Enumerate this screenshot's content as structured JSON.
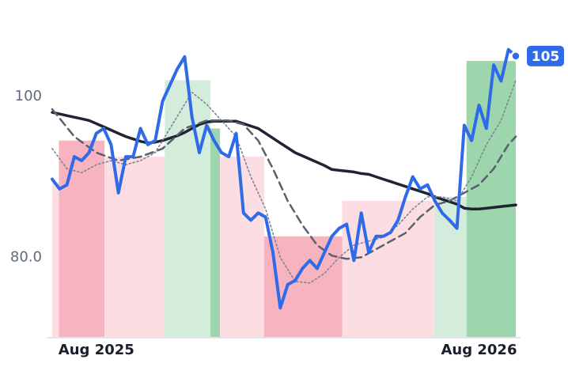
{
  "chart_data": {
    "type": "line",
    "x": [
      0,
      1,
      2,
      3,
      4,
      5,
      6,
      7,
      8,
      9,
      10,
      11,
      12,
      13,
      14,
      15,
      16,
      17,
      18,
      19,
      20,
      21,
      22,
      23,
      24,
      25,
      26,
      27,
      28,
      29,
      30,
      31,
      32,
      33,
      34,
      35,
      36,
      37,
      38,
      39,
      40,
      41,
      42,
      43,
      44,
      45,
      46,
      47,
      48,
      49,
      50,
      51,
      52,
      53,
      54,
      55,
      56,
      57,
      58,
      59,
      60,
      61,
      62,
      63
    ],
    "xlim": [
      0,
      63
    ],
    "xticks": [
      {
        "value": 6,
        "label": "Aug 2025"
      },
      {
        "value": 58,
        "label": "Aug 2026"
      }
    ],
    "ylim": [
      70,
      110
    ],
    "yticks": [
      {
        "value": 80,
        "label": "80.0"
      },
      100
    ],
    "bands": [
      {
        "x0": 0,
        "x1": 0.9,
        "value": 89.3,
        "color": "#fcdde2"
      },
      {
        "x0": 0.9,
        "x1": 7.1,
        "value": 94.5,
        "color": "#f7b3bf"
      },
      {
        "x0": 7.1,
        "x1": 15.3,
        "value": 92.5,
        "color": "#fcdde2"
      },
      {
        "x0": 15.3,
        "x1": 21.5,
        "value": 102,
        "color": "#d3ecdc"
      },
      {
        "x0": 21.5,
        "x1": 22.8,
        "value": 96,
        "color": "#9dd6ad"
      },
      {
        "x0": 22.8,
        "x1": 28.8,
        "value": 92.5,
        "color": "#fcdde2"
      },
      {
        "x0": 28.8,
        "x1": 39.4,
        "value": 82.6,
        "color": "#f7b3bf"
      },
      {
        "x0": 39.4,
        "x1": 51.9,
        "value": 87,
        "color": "#fcdde2"
      },
      {
        "x0": 51.9,
        "x1": 56.3,
        "value": 87.5,
        "color": "#d3ecdc"
      },
      {
        "x0": 56.3,
        "x1": 63,
        "value": 104.4,
        "color": "#9dd6ad"
      }
    ],
    "series": [
      {
        "color": "#1f2433",
        "style": "solid",
        "width": 3.5,
        "values": [
          98,
          97.8,
          97.6,
          97.4,
          97.2,
          97,
          96.6,
          96.2,
          95.8,
          95.4,
          95,
          94.7,
          94.4,
          94.2,
          94.3,
          94.5,
          94.8,
          95.1,
          95.5,
          96,
          96.5,
          96.8,
          96.9,
          96.9,
          96.9,
          96.9,
          96.6,
          96.3,
          96,
          95.4,
          94.8,
          94.2,
          93.6,
          93,
          92.6,
          92.2,
          91.8,
          91.4,
          90.9,
          90.8,
          90.7,
          90.6,
          90.4,
          90.3,
          90,
          89.7,
          89.4,
          89.1,
          88.8,
          88.5,
          88.2,
          87.9,
          87.5,
          87.2,
          86.9,
          86.6,
          86.1,
          86,
          86,
          86.1,
          86.2,
          86.3,
          86.4,
          86.5
        ]
      },
      {
        "color": "#59606e",
        "style": "dashed",
        "width": 2.5,
        "x": [
          0,
          3,
          6,
          9,
          12,
          15,
          18,
          21,
          24,
          26,
          28,
          30,
          32,
          34,
          36,
          38,
          40,
          42,
          44,
          46,
          48,
          50,
          52,
          54,
          56,
          58,
          60,
          62,
          63
        ],
        "values": [
          98.4,
          95,
          93,
          92,
          92.5,
          93.5,
          96,
          97,
          97,
          96.5,
          94.5,
          91,
          87,
          84,
          81.5,
          80.2,
          79.8,
          80,
          81,
          82,
          83,
          85,
          86.5,
          87,
          88,
          89,
          91,
          94,
          95
        ]
      },
      {
        "color": "#7c8494",
        "style": "dotted",
        "width": 1.6,
        "x": [
          0,
          2,
          4,
          6,
          8,
          10,
          12,
          14,
          16,
          18,
          19,
          21,
          23,
          25,
          27,
          29,
          31,
          33,
          35,
          37,
          39,
          41,
          43,
          45,
          47,
          49,
          51,
          53,
          55,
          57,
          59,
          61,
          63
        ],
        "values": [
          93.5,
          91,
          90.5,
          91.5,
          92,
          91.5,
          92,
          93,
          96,
          99,
          100.5,
          99,
          97,
          95,
          90,
          86,
          80,
          77,
          76.8,
          78,
          80,
          81.5,
          82,
          82.5,
          84,
          86,
          87.5,
          87.5,
          87,
          90,
          94,
          97,
          102
        ]
      },
      {
        "color": "#2f6be8",
        "style": "solid",
        "width": 4,
        "last_label": "105",
        "values": [
          89.7,
          88.5,
          89,
          92.5,
          92,
          93,
          95.4,
          96,
          94,
          88,
          92.5,
          92.5,
          96,
          94,
          94.5,
          99.4,
          101.4,
          103.4,
          104.9,
          97.4,
          93,
          96.4,
          94.5,
          93,
          92.5,
          95.4,
          85.5,
          84.6,
          85.5,
          85,
          80.6,
          73.7,
          76.6,
          77.1,
          78.6,
          79.6,
          78.6,
          80.6,
          82.6,
          83.6,
          84.1,
          79.6,
          85.5,
          80.6,
          82.6,
          82.6,
          83.1,
          84.6,
          87.5,
          90,
          88.5,
          89,
          87,
          85.5,
          84.6,
          83.6,
          96.4,
          94.5,
          98.9,
          96,
          103.9,
          101.9,
          105.8,
          105
        ]
      }
    ]
  }
}
